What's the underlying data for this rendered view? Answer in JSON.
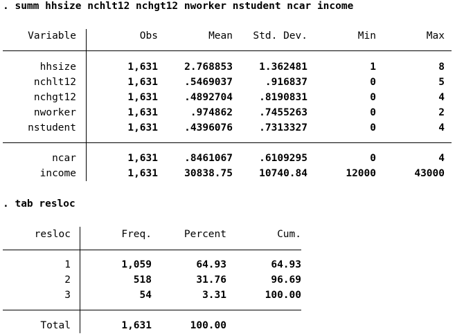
{
  "commands": {
    "summ": ". summ hhsize nchlt12 nchgt12 nworker nstudent ncar income",
    "tab": ". tab resloc"
  },
  "summ_table": {
    "headers": [
      "Variable",
      "Obs",
      "Mean",
      "Std. Dev.",
      "Min",
      "Max"
    ],
    "group1": [
      {
        "var": "hhsize",
        "obs": "1,631",
        "mean": "2.768853",
        "sd": "1.362481",
        "min": "1",
        "max": "8"
      },
      {
        "var": "nchlt12",
        "obs": "1,631",
        "mean": ".5469037",
        "sd": ".916837",
        "min": "0",
        "max": "5"
      },
      {
        "var": "nchgt12",
        "obs": "1,631",
        "mean": ".4892704",
        "sd": ".8190831",
        "min": "0",
        "max": "4"
      },
      {
        "var": "nworker",
        "obs": "1,631",
        "mean": ".974862",
        "sd": ".7455263",
        "min": "0",
        "max": "2"
      },
      {
        "var": "nstudent",
        "obs": "1,631",
        "mean": ".4396076",
        "sd": ".7313327",
        "min": "0",
        "max": "4"
      }
    ],
    "group2": [
      {
        "var": "ncar",
        "obs": "1,631",
        "mean": ".8461067",
        "sd": ".6109295",
        "min": "0",
        "max": "4"
      },
      {
        "var": "income",
        "obs": "1,631",
        "mean": "30838.75",
        "sd": "10740.84",
        "min": "12000",
        "max": "43000"
      }
    ]
  },
  "tab_table": {
    "headers": [
      "resloc",
      "Freq.",
      "Percent",
      "Cum."
    ],
    "rows": [
      {
        "label": "1",
        "freq": "1,059",
        "pct": "64.93",
        "cum": "64.93"
      },
      {
        "label": "2",
        "freq": "518",
        "pct": "31.76",
        "cum": "96.69"
      },
      {
        "label": "3",
        "freq": "54",
        "pct": "3.31",
        "cum": "100.00"
      }
    ],
    "total": {
      "label": "Total",
      "freq": "1,631",
      "pct": "100.00"
    }
  }
}
